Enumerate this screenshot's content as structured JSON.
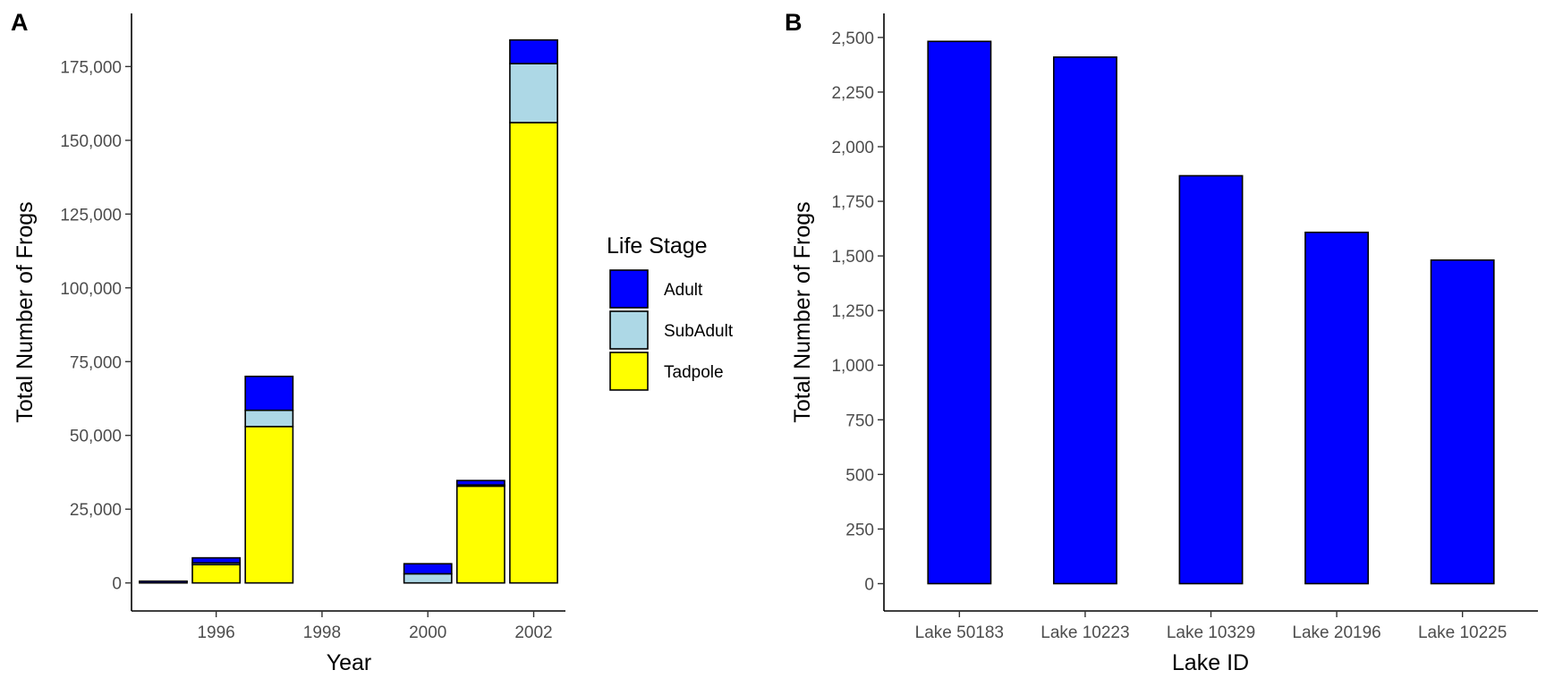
{
  "colors": {
    "adult": "#0000FF",
    "subadult": "#ADD8E6",
    "tadpole": "#FFFF00",
    "lake_bars": "#0000FF",
    "outline": "#000000"
  },
  "chart_data": [
    {
      "panel": "A",
      "type": "bar",
      "stacked": true,
      "xlabel": "Year",
      "ylabel": "Total Number of Frogs",
      "x": [
        1995,
        1996,
        1997,
        2000,
        2001,
        2002
      ],
      "series": [
        {
          "name": "Tadpole",
          "color": "#FFFF00",
          "values": [
            0,
            6200,
            53000,
            0,
            32800,
            156000
          ]
        },
        {
          "name": "SubAdult",
          "color": "#ADD8E6",
          "values": [
            0,
            600,
            5500,
            3100,
            400,
            20000
          ]
        },
        {
          "name": "Adult",
          "color": "#0000FF",
          "values": [
            600,
            1700,
            11500,
            3400,
            1500,
            8000
          ]
        }
      ],
      "xticks": [
        "1996",
        "1998",
        "2000",
        "2002"
      ],
      "xtick_values": [
        1996,
        1998,
        2000,
        2002
      ],
      "xlim": [
        1994.4,
        2002.6
      ],
      "yticks": [
        "0",
        "25,000",
        "50,000",
        "75,000",
        "100,000",
        "125,000",
        "150,000",
        "175,000"
      ],
      "ytick_values": [
        0,
        25000,
        50000,
        75000,
        100000,
        125000,
        150000,
        175000
      ],
      "ylim": [
        -9500,
        193000
      ],
      "legend": {
        "title": "Life Stage",
        "entries": [
          "Adult",
          "SubAdult",
          "Tadpole"
        ],
        "placement": "right"
      }
    },
    {
      "panel": "B",
      "type": "bar",
      "xlabel": "Lake ID",
      "ylabel": "Total Number of Frogs",
      "categories": [
        "Lake 50183",
        "Lake 10223",
        "Lake 10329",
        "Lake 20196",
        "Lake 10225"
      ],
      "values": [
        2482,
        2410,
        1867,
        1608,
        1481
      ],
      "color": "#0000FF",
      "yticks": [
        "0",
        "250",
        "500",
        "750",
        "1,000",
        "1,250",
        "1,500",
        "1,750",
        "2,000",
        "2,250",
        "2,500"
      ],
      "ytick_values": [
        0,
        250,
        500,
        750,
        1000,
        1250,
        1500,
        1750,
        2000,
        2250,
        2500
      ],
      "ylim": [
        -125,
        2610
      ]
    }
  ]
}
